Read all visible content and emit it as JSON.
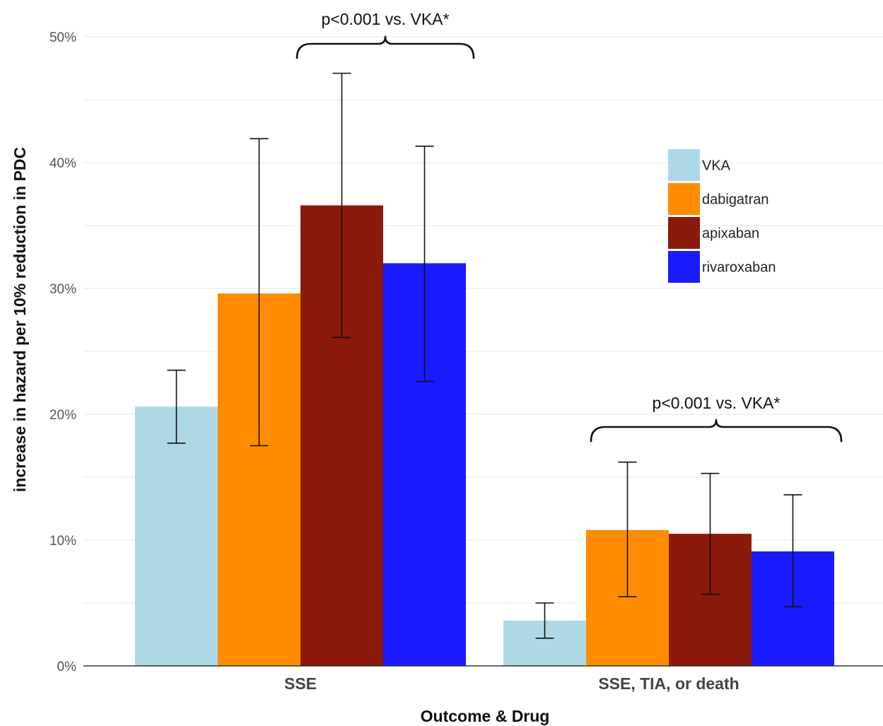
{
  "chart_data": {
    "type": "bar",
    "title": "",
    "xlabel": "Outcome & Drug",
    "ylabel": "increase in hazard per 10% reduction in PDC",
    "ylim": [
      0,
      50
    ],
    "yticks": [
      "0%",
      "10%",
      "20%",
      "30%",
      "40%",
      "50%"
    ],
    "categories": [
      "SSE",
      "SSE, TIA, or death"
    ],
    "series": [
      {
        "name": "VKA",
        "color": "#add8e6",
        "values": [
          20.6,
          3.6
        ],
        "ci_low": [
          17.7,
          2.2
        ],
        "ci_high": [
          23.5,
          5.0
        ]
      },
      {
        "name": "dabigatran",
        "color": "#ff8c00",
        "values": [
          29.6,
          10.8
        ],
        "ci_low": [
          17.5,
          5.5
        ],
        "ci_high": [
          41.9,
          16.2
        ]
      },
      {
        "name": "apixaban",
        "color": "#8b1a0a",
        "values": [
          36.6,
          10.5
        ],
        "ci_low": [
          26.1,
          5.7
        ],
        "ci_high": [
          47.1,
          15.3
        ]
      },
      {
        "name": "rivaroxaban",
        "color": "#1a1aff",
        "values": [
          32.0,
          9.1
        ],
        "ci_low": [
          22.6,
          4.7
        ],
        "ci_high": [
          41.3,
          13.6
        ]
      }
    ],
    "annotations": [
      {
        "text": "p<0.001 vs. VKA*",
        "category": "SSE"
      },
      {
        "text": "p<0.001 vs. VKA*",
        "category": "SSE, TIA, or death"
      }
    ],
    "grid": true,
    "legend_position": "top-right"
  }
}
